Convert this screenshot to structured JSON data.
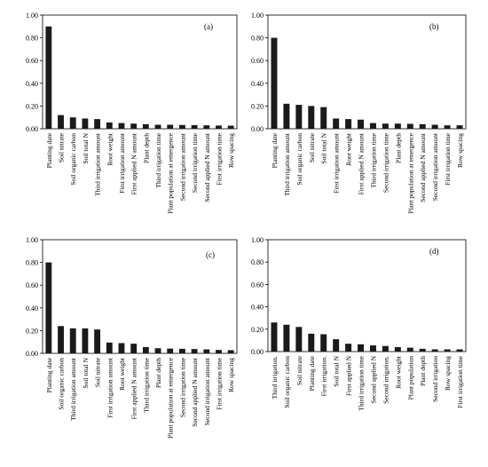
{
  "chart_data": [
    {
      "type": "bar",
      "panel_label": "(a)",
      "categories": [
        "Planting date",
        "Soil nitrate",
        "Soil organic carbon",
        "Soil total N",
        "Third irrigation amount",
        "Root weight",
        "First irrigation amount",
        "First applied N amount",
        "Plant depth",
        "Third irrigation time",
        "Plant population at emergence",
        "Second irrigation amount",
        "Second irrigation time",
        "Second applied N amount",
        "First irrigation time",
        "Row spacing"
      ],
      "values": [
        0.9,
        0.12,
        0.1,
        0.09,
        0.085,
        0.055,
        0.05,
        0.045,
        0.04,
        0.035,
        0.035,
        0.033,
        0.032,
        0.03,
        0.028,
        0.027
      ],
      "ylim": [
        0,
        1.0
      ],
      "yticks": [
        "0.00",
        "0.20",
        "0.40",
        "0.60",
        "0.80",
        "1.00"
      ],
      "xlabel": "",
      "ylabel": "",
      "title": ""
    },
    {
      "type": "bar",
      "panel_label": "(b)",
      "categories": [
        "Planting date",
        "Third irrigation amount",
        "Soil organic carbon",
        "Soil nitrate",
        "Soil total N",
        "First irrigation amount",
        "Root weight",
        "First applied N amount",
        "Third irrigation time",
        "Second irrigation time",
        "Plant depth",
        "Plant population at emergence",
        "Second applied N amount",
        "Second irrigation amount",
        "First irrigation time",
        "Row spacing"
      ],
      "values": [
        0.8,
        0.22,
        0.21,
        0.2,
        0.19,
        0.09,
        0.085,
        0.08,
        0.05,
        0.045,
        0.045,
        0.043,
        0.04,
        0.035,
        0.03,
        0.03
      ],
      "ylim": [
        0,
        1.0
      ],
      "yticks": [
        "0.00",
        "0.20",
        "0.40",
        "0.60",
        "0.80",
        "1.00"
      ],
      "xlabel": "",
      "ylabel": "",
      "title": ""
    },
    {
      "type": "bar",
      "panel_label": "(c)",
      "categories": [
        "Planting date",
        "Soil organic carbon",
        "Third irrigation amount",
        "Soil total N",
        "Soil nitrate",
        "First irrigation amount",
        "Root weight",
        "First applied N amount",
        "Third irrigation time",
        "Plant depth",
        "Plant population at emergence",
        "Second irrigation time",
        "Second applied N amount",
        "Second irrigation amount",
        "First irrigation time",
        "Row spacing"
      ],
      "values": [
        0.8,
        0.24,
        0.22,
        0.22,
        0.21,
        0.095,
        0.09,
        0.085,
        0.055,
        0.045,
        0.042,
        0.04,
        0.038,
        0.035,
        0.03,
        0.028
      ],
      "ylim": [
        0,
        1.0
      ],
      "yticks": [
        "0.00",
        "0.20",
        "0.40",
        "0.60",
        "0.80",
        "1.00"
      ],
      "xlabel": "",
      "ylabel": "",
      "title": ""
    },
    {
      "type": "bar",
      "panel_label": "(d)",
      "categories": [
        "Third irrigation.",
        "Soil organic carbon",
        "Soil nitrate",
        "Planting date",
        "First irrigation.",
        "Soil total N",
        "First applied N",
        "Third irrigation time",
        "Second applied N",
        "Second irrigation.",
        "Root weight",
        "Plant population",
        "Plant depth",
        "Second irrigation",
        "Row spacing",
        "First irrigation time"
      ],
      "values": [
        0.26,
        0.24,
        0.22,
        0.16,
        0.155,
        0.11,
        0.07,
        0.065,
        0.055,
        0.05,
        0.04,
        0.035,
        0.025,
        0.02,
        0.02,
        0.02
      ],
      "ylim": [
        0,
        1.0
      ],
      "yticks": [
        "0.00",
        "0.20",
        "0.40",
        "0.60",
        "0.80",
        "1.00"
      ],
      "xlabel": "",
      "ylabel": "",
      "title": ""
    }
  ]
}
